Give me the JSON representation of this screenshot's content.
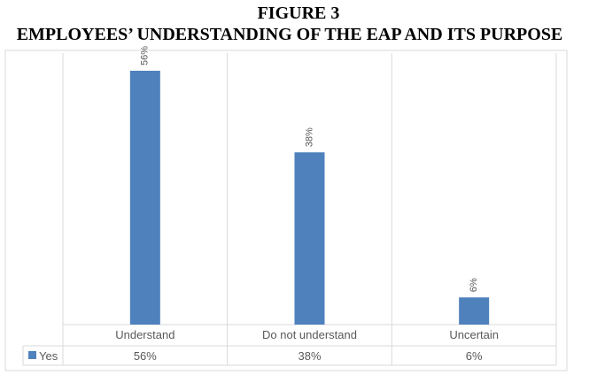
{
  "heading": {
    "figure": "FIGURE 3",
    "title": "EMPLOYEES’ UNDERSTANDING OF THE EAP AND ITS PURPOSE"
  },
  "colors": {
    "bar": "#4f81bd",
    "grid": "#d9d9d9",
    "text": "#595959",
    "frame": "#d9d9d9"
  },
  "chart_data": {
    "type": "bar",
    "title": "",
    "categories": [
      "Understand",
      "Do not understand",
      "Uncertain"
    ],
    "series": [
      {
        "name": "Yes",
        "values": [
          56,
          38,
          6
        ]
      }
    ],
    "value_labels": [
      "56%",
      "38%",
      "6%"
    ],
    "ylim": [
      0,
      60
    ],
    "grid": true,
    "legend": "data-table",
    "data_table": {
      "row_label": "Yes",
      "cells": [
        "56%",
        "38%",
        "6%"
      ]
    }
  }
}
